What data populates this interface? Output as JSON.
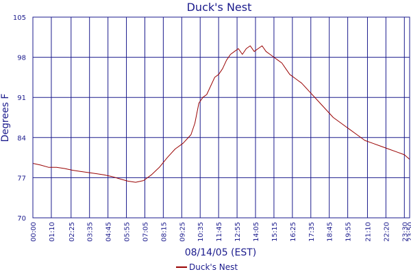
{
  "chart_data": {
    "type": "line",
    "title": "Duck's Nest",
    "xlabel": "08/14/05 (EST)",
    "ylabel": "Degrees F",
    "ylim": [
      70,
      105
    ],
    "yticks": [
      70,
      77,
      84,
      91,
      98,
      105
    ],
    "xticks": [
      "00:00",
      "01:10",
      "02:25",
      "03:35",
      "04:45",
      "05:55",
      "07:05",
      "08:15",
      "09:25",
      "10:35",
      "11:45",
      "12:55",
      "14:05",
      "15:15",
      "16:25",
      "17:35",
      "18:45",
      "19:55",
      "21:10",
      "22:20",
      "23:30",
      "23:50"
    ],
    "grid": true,
    "legend_position": "bottom-center",
    "colors": {
      "axis": "#1a1a8c",
      "grid": "#1a1a8c",
      "series": "#990000",
      "text": "#1a1a8c"
    },
    "series": [
      {
        "name": "Duck's Nest",
        "x": [
          "00:00",
          "00:30",
          "01:00",
          "01:30",
          "02:00",
          "02:30",
          "03:00",
          "03:30",
          "04:00",
          "04:30",
          "05:00",
          "05:30",
          "06:00",
          "06:30",
          "07:00",
          "07:30",
          "08:00",
          "08:30",
          "09:00",
          "09:30",
          "10:00",
          "10:15",
          "10:30",
          "10:45",
          "11:00",
          "11:15",
          "11:30",
          "11:45",
          "12:00",
          "12:15",
          "12:30",
          "12:45",
          "13:00",
          "13:15",
          "13:30",
          "13:45",
          "14:00",
          "14:15",
          "14:30",
          "14:45",
          "15:00",
          "15:15",
          "15:30",
          "15:45",
          "16:00",
          "16:15",
          "16:30",
          "16:45",
          "17:00",
          "17:30",
          "18:00",
          "18:30",
          "19:00",
          "19:30",
          "20:00",
          "20:30",
          "21:00",
          "21:30",
          "22:00",
          "22:30",
          "23:00",
          "23:30",
          "23:50"
        ],
        "values": [
          79.5,
          79.2,
          78.8,
          78.8,
          78.6,
          78.3,
          78.1,
          77.9,
          77.7,
          77.5,
          77.2,
          76.8,
          76.4,
          76.2,
          76.5,
          77.5,
          78.8,
          80.5,
          82.0,
          83.0,
          84.5,
          86.5,
          90.0,
          91.0,
          91.5,
          93.0,
          94.5,
          95.0,
          96.0,
          97.5,
          98.5,
          99.0,
          99.5,
          98.5,
          99.5,
          100.0,
          99.0,
          99.5,
          100.0,
          99.0,
          98.5,
          98.0,
          97.5,
          97.0,
          96.0,
          95.0,
          94.5,
          94.0,
          93.5,
          92.0,
          90.5,
          89.0,
          87.5,
          86.5,
          85.5,
          84.5,
          83.5,
          83.0,
          82.5,
          82.0,
          81.5,
          81.0,
          80.2
        ]
      }
    ]
  }
}
